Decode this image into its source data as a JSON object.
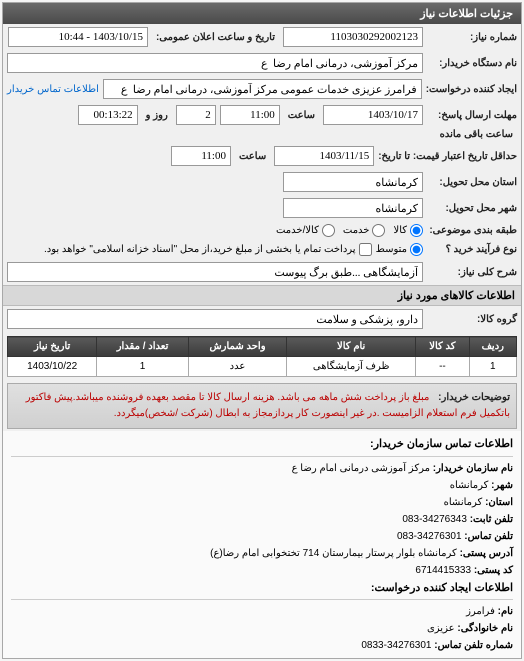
{
  "panel_title": "جزئیات اطلاعات نیاز",
  "fields": {
    "need_no_label": "شماره نیاز:",
    "need_no": "1103030292002123",
    "announce_label": "تاریخ و ساعت اعلان عمومی:",
    "announce_value": "1403/10/15 - 10:44",
    "buyer_org_label": "نام دستگاه خریدار:",
    "buyer_org": "مرکز آموزشی، درمانی امام رضا  ع",
    "creator_label": "ایجاد کننده درخواست:",
    "creator": "فرامرز عزیزی خدمات عمومی مرکز آموزشی، درمانی امام رضا  ع",
    "contact_link": "اطلاعات تماس خریدار",
    "deadline_label": "مهلت ارسال پاسخ:",
    "deadline_to_label": "تا تاریخ:",
    "deadline_date": "1403/10/17",
    "time_label": "ساعت",
    "deadline_time": "11:00",
    "days_num": "2",
    "days_label": "روز و",
    "remain_time": "00:13:22",
    "remain_label": "ساعت باقی مانده",
    "price_validity_label": "حداقل تاریخ اعتبار قیمت: تا تاریخ:",
    "price_validity_date": "1403/11/15",
    "price_validity_time": "11:00",
    "province_label": "استان محل تحویل:",
    "province": "کرمانشاه",
    "city_label": "شهر محل تحویل:",
    "city": "کرمانشاه",
    "category_label": "طبقه بندی موضوعی:",
    "cat_kala": "کالا",
    "cat_khadmat": "خدمت",
    "cat_kalakhadmat": "کالا/خدمت",
    "process_label": "نوع فرآیند خرید ؟",
    "proc_mid": "متوسط",
    "proc_note": "پرداخت تمام یا بخشی از مبلغ خرید،از محل \"اسناد خزانه اسلامی\" خواهد بود.",
    "need_title_label": "شرح کلی نیاز:",
    "need_title": "آزمایشگاهی ...طبق برگ پیوست"
  },
  "goods_section_title": "اطلاعات کالاهای مورد نیاز",
  "goods_group_label": "گروه کالا:",
  "goods_group": "دارو، پزشکی و سلامت",
  "table": {
    "headers": [
      "ردیف",
      "کد کالا",
      "نام کالا",
      "واحد شمارش",
      "تعداد / مقدار",
      "تاریخ نیاز"
    ],
    "row": [
      "1",
      "--",
      "ظرف آزمایشگاهی",
      "عدد",
      "1",
      "1403/10/22"
    ]
  },
  "buyer_desc_label": "توضیحات خریدار:",
  "buyer_desc": "مبلغ باز پرداخت شش ماهه می باشد. هزینه ارسال کالا تا مقصد بعهده فروشنده میباشد.پیش فاکتور باتکمیل فرم استعلام الزامیست .در غیر اینصورت کار پردازمجاز به ابطال (شرکت /شخص)میگردد.",
  "contact": {
    "header": "اطلاعات تماس سازمان خریدار:",
    "org_k": "نام سازمان خریدار:",
    "org_v": "مرکز آموزشی درمانی امام رضا ع",
    "prov_k": "شهر:",
    "prov_v": "کرمانشاه",
    "ostan_k": "استان:",
    "ostan_v": "کرمانشاه",
    "tel_k": "تلفن ثابت:",
    "tel_v": "34276343-083",
    "fax_k": "تلفن تماس:",
    "fax_v": "34276301-083",
    "addr_k": "آدرس پستی:",
    "addr_v": "کرمانشاه بلوار پرستار بیمارستان 714 تختخوابی امام رضا(ع)",
    "post_k": "کد پستی:",
    "post_v": "6714415333",
    "creator_hdr": "اطلاعات ایجاد کننده درخواست:",
    "name_k": "نام:",
    "name_v": "فرامرز",
    "lname_k": "نام خانوادگی:",
    "lname_v": "عزیزی",
    "ctel_k": "شماره تلفن تماس:",
    "ctel_v": "34276301-0833"
  }
}
